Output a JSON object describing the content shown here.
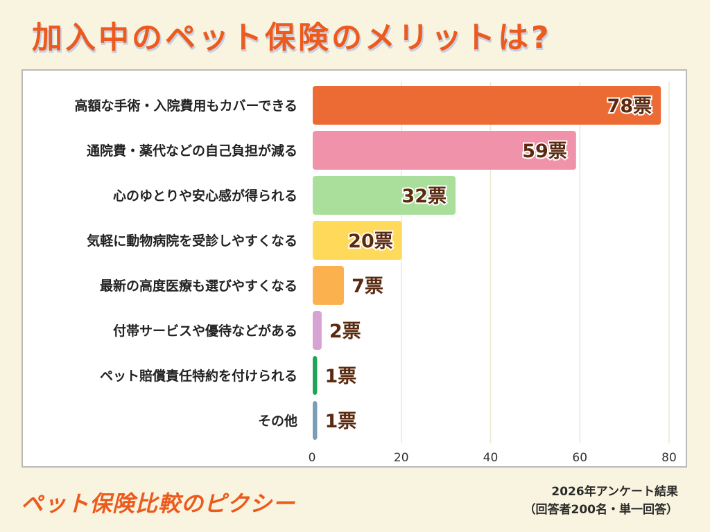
{
  "chart_data": {
    "type": "bar",
    "orientation": "horizontal",
    "title": "加入中のペット保険のメリットは?",
    "categories": [
      "高額な手術・入院費用もカバーできる",
      "通院費・薬代などの自己負担が減る",
      "心のゆとりや安心感が得られる",
      "気軽に動物病院を受診しやすくなる",
      "最新の高度医療も選びやすくなる",
      "付帯サービスや優待などがある",
      "ペット賠償責任特約を付けられる",
      "その他"
    ],
    "values": [
      78,
      59,
      32,
      20,
      7,
      2,
      1,
      1
    ],
    "value_labels": [
      "78票",
      "59票",
      "32票",
      "20票",
      "7票",
      "2票",
      "1票",
      "1票"
    ],
    "colors": [
      "#ec6b35",
      "#f093aa",
      "#a9df9a",
      "#ffd95a",
      "#fbb24e",
      "#d7a3d4",
      "#22a35a",
      "#7a9fb4"
    ],
    "x_ticks": [
      0,
      20,
      40,
      60,
      80
    ],
    "xlim": [
      0,
      80
    ],
    "xlabel": "",
    "ylabel": "",
    "grid": true
  },
  "brand": "ペット保険比較のピクシー",
  "survey_note": {
    "line1": "2026年アンケート結果",
    "line2": "（回答者200名・単一回答）"
  }
}
